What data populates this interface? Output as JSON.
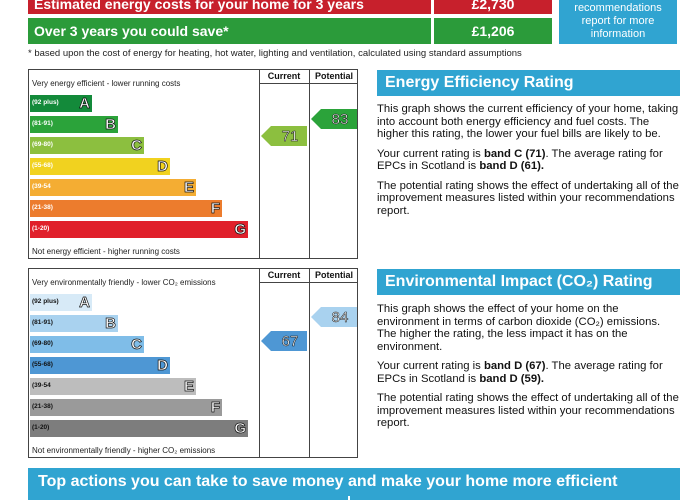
{
  "costs": {
    "estimated_label": "Estimated energy costs for your home for 3 years",
    "estimated_value": "£2,730",
    "save_label": "Over 3 years you could save*",
    "save_value": "£1,206",
    "side_note": "recommendations report for more information",
    "footnote": "* based upon the cost of energy for heating, hot water, lighting and ventilation, calculated using standard assumptions"
  },
  "energy_chart": {
    "col_current": "Current",
    "col_potential": "Potential",
    "top_text": "Very energy efficient - lower running costs",
    "bottom_text": "Not energy efficient - higher running costs",
    "bands": [
      {
        "range": "(92 plus)",
        "letter": "A",
        "color": "#138a3a"
      },
      {
        "range": "(81-91)",
        "letter": "B",
        "color": "#2ba33a"
      },
      {
        "range": "(69-80)",
        "letter": "C",
        "color": "#8cbf3f"
      },
      {
        "range": "(55-68)",
        "letter": "D",
        "color": "#f1d21f"
      },
      {
        "range": "(39-54",
        "letter": "E",
        "color": "#f4ad33"
      },
      {
        "range": "(21-38)",
        "letter": "F",
        "color": "#ec7c2d"
      },
      {
        "range": "(1-20)",
        "letter": "G",
        "color": "#e0202b"
      }
    ],
    "current_value": "71",
    "current_color": "#8cbf3f",
    "potential_value": "83",
    "potential_color": "#2ba33a"
  },
  "impact_chart": {
    "col_current": "Current",
    "col_potential": "Potential",
    "top_text": "Very environmentally friendly - lower CO₂ emissions",
    "bottom_text": "Not environmentally friendly - higher CO₂ emissions",
    "bands": [
      {
        "range": "(92 plus)",
        "letter": "A",
        "color": "#d7eaf7"
      },
      {
        "range": "(81-91)",
        "letter": "B",
        "color": "#a9d2ef"
      },
      {
        "range": "(69-80)",
        "letter": "C",
        "color": "#7fbde8"
      },
      {
        "range": "(55-68)",
        "letter": "D",
        "color": "#4e97d4"
      },
      {
        "range": "(39-54",
        "letter": "E",
        "color": "#bdbdbd"
      },
      {
        "range": "(21-38)",
        "letter": "F",
        "color": "#9a9a9a"
      },
      {
        "range": "(1-20)",
        "letter": "G",
        "color": "#7d7d7d"
      }
    ],
    "current_value": "67",
    "current_color": "#4e97d4",
    "potential_value": "84",
    "potential_color": "#a9d2ef"
  },
  "energy_panel": {
    "title": "Energy Efficiency Rating",
    "p1": "This graph shows the current efficiency of your home, taking into account both energy efficiency and fuel costs. The higher this rating, the lower your fuel bills are likely to be.",
    "p2_prefix": "Your current rating is ",
    "p2_band": "band C (71)",
    "p2_mid": ". The average rating for EPCs in Scotland is ",
    "p2_avg": "band D (61).",
    "p3": "The potential rating shows the effect of undertaking all of the improvement measures listed within your recommendations report."
  },
  "impact_panel": {
    "title": "Environmental Impact (CO₂) Rating",
    "p1": "This graph shows the effect of your home on the environment in terms of carbon dioxide (CO₂) emissions. The higher the rating, the less impact it has on the environment.",
    "p2_prefix": "Your current rating is ",
    "p2_band": "band D (67)",
    "p2_mid": ". The average rating for EPCs in Scotland is ",
    "p2_avg": "band D (59).",
    "p3": "The potential rating shows the effect of undertaking all of the improvement measures listed within your recommendations report."
  },
  "bottom_banner": "Top actions you can take to save money and make your home more efficient"
}
